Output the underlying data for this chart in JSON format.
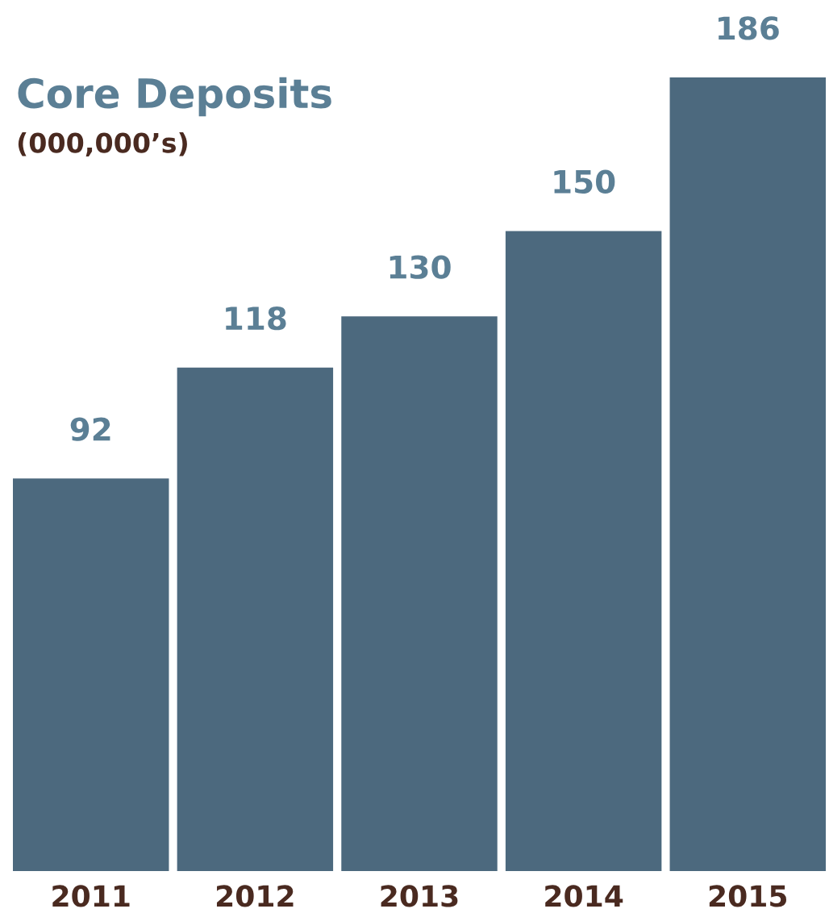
{
  "chart_data": {
    "type": "bar",
    "title": "Core Deposits",
    "subtitle": "(000,000’s)",
    "categories": [
      "2011",
      "2012",
      "2013",
      "2014",
      "2015"
    ],
    "values": [
      92,
      118,
      130,
      150,
      186
    ],
    "color": "#4c697e",
    "data_labels": true,
    "grid": false,
    "legend": false
  }
}
